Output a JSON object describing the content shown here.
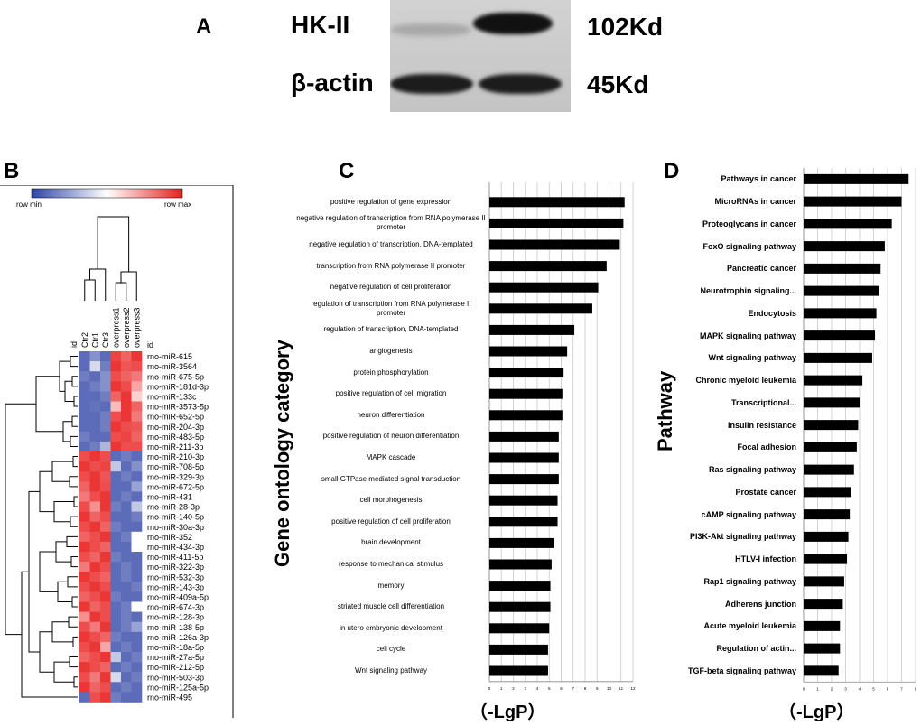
{
  "panel_a": {
    "letter": "A",
    "rows": [
      {
        "protein": "HK-II",
        "size": "102Kd"
      },
      {
        "protein": "β-actin",
        "size": "45Kd"
      }
    ]
  },
  "panel_b": {
    "letter": "B",
    "legend_min": "row min",
    "legend_max": "row max",
    "column_header": "id",
    "row_header": "id",
    "columns": [
      "Ctr2",
      "Ctr1",
      "Ctr3",
      "overpress1",
      "overpress2",
      "overpress3"
    ],
    "colors": {
      "low": "#3347a6",
      "high": "#e8201f",
      "mid": "#ffffff"
    },
    "rows": [
      {
        "id": "rno-miR-615",
        "values": [
          0.1,
          0.2,
          0.1,
          0.92,
          0.85,
          0.95
        ]
      },
      {
        "id": "rno-miR-3564",
        "values": [
          0.1,
          0.4,
          0.15,
          0.95,
          0.88,
          0.9
        ]
      },
      {
        "id": "rno-miR-675-5p",
        "values": [
          0.15,
          0.1,
          0.2,
          0.9,
          0.85,
          0.8
        ]
      },
      {
        "id": "rno-miR-181d-3p",
        "values": [
          0.1,
          0.15,
          0.2,
          0.95,
          0.9,
          0.7
        ]
      },
      {
        "id": "rno-miR-133c",
        "values": [
          0.1,
          0.1,
          0.15,
          0.85,
          0.95,
          0.6
        ]
      },
      {
        "id": "rno-miR-3573-5p",
        "values": [
          0.1,
          0.12,
          0.1,
          0.65,
          0.95,
          0.85
        ]
      },
      {
        "id": "rno-miR-652-5p",
        "values": [
          0.1,
          0.1,
          0.15,
          0.9,
          0.95,
          0.8
        ]
      },
      {
        "id": "rno-miR-204-3p",
        "values": [
          0.1,
          0.1,
          0.15,
          0.95,
          0.9,
          0.88
        ]
      },
      {
        "id": "rno-miR-483-5p",
        "values": [
          0.15,
          0.1,
          0.1,
          0.9,
          0.92,
          0.85
        ]
      },
      {
        "id": "rno-miR-211-3p",
        "values": [
          0.1,
          0.15,
          0.3,
          0.95,
          0.9,
          0.9
        ]
      },
      {
        "id": "rno-miR-210-3p",
        "values": [
          0.9,
          0.95,
          0.9,
          0.1,
          0.15,
          0.1
        ]
      },
      {
        "id": "rno-miR-708-5p",
        "values": [
          0.95,
          0.9,
          0.92,
          0.35,
          0.1,
          0.2
        ]
      },
      {
        "id": "rno-miR-329-3p",
        "values": [
          0.9,
          0.95,
          0.88,
          0.1,
          0.15,
          0.1
        ]
      },
      {
        "id": "rno-miR-672-5p",
        "values": [
          0.85,
          0.95,
          0.9,
          0.1,
          0.1,
          0.25
        ]
      },
      {
        "id": "rno-miR-431",
        "values": [
          0.8,
          0.9,
          0.95,
          0.1,
          0.15,
          0.1
        ]
      },
      {
        "id": "rno-miR-28-3p",
        "values": [
          0.9,
          0.75,
          0.95,
          0.15,
          0.1,
          0.35
        ]
      },
      {
        "id": "rno-miR-140-5p",
        "values": [
          0.95,
          0.85,
          0.9,
          0.1,
          0.1,
          0.15
        ]
      },
      {
        "id": "rno-miR-30a-3p",
        "values": [
          0.9,
          0.95,
          0.85,
          0.15,
          0.1,
          0.1
        ]
      },
      {
        "id": "rno-miR-352",
        "values": [
          0.85,
          0.9,
          0.95,
          0.1,
          0.15,
          0.5
        ]
      },
      {
        "id": "rno-miR-434-3p",
        "values": [
          0.95,
          0.9,
          0.85,
          0.1,
          0.1,
          0.5
        ]
      },
      {
        "id": "rno-miR-411-5p",
        "values": [
          0.9,
          0.85,
          0.95,
          0.15,
          0.1,
          0.1
        ]
      },
      {
        "id": "rno-miR-322-3p",
        "values": [
          0.8,
          0.95,
          0.9,
          0.1,
          0.15,
          0.1
        ]
      },
      {
        "id": "rno-miR-532-3p",
        "values": [
          0.95,
          0.9,
          0.85,
          0.1,
          0.15,
          0.1
        ]
      },
      {
        "id": "rno-miR-143-3p",
        "values": [
          0.9,
          0.95,
          0.9,
          0.1,
          0.1,
          0.15
        ]
      },
      {
        "id": "rno-miR-409a-5p",
        "values": [
          0.85,
          0.9,
          0.95,
          0.15,
          0.1,
          0.1
        ]
      },
      {
        "id": "rno-miR-674-3p",
        "values": [
          0.95,
          0.85,
          0.9,
          0.1,
          0.15,
          0.5
        ]
      },
      {
        "id": "rno-miR-128-3p",
        "values": [
          0.75,
          0.95,
          0.9,
          0.1,
          0.15,
          0.1
        ]
      },
      {
        "id": "rno-miR-138-5p",
        "values": [
          0.9,
          0.8,
          0.95,
          0.1,
          0.15,
          0.25
        ]
      },
      {
        "id": "rno-miR-126a-3p",
        "values": [
          0.95,
          0.9,
          0.85,
          0.15,
          0.1,
          0.1
        ]
      },
      {
        "id": "rno-miR-18a-5p",
        "values": [
          0.9,
          0.95,
          0.7,
          0.1,
          0.15,
          0.1
        ]
      },
      {
        "id": "rno-miR-27a-5p",
        "values": [
          0.85,
          0.9,
          0.95,
          0.35,
          0.1,
          0.15
        ]
      },
      {
        "id": "rno-miR-212-5p",
        "values": [
          0.95,
          0.9,
          0.85,
          0.1,
          0.15,
          0.1
        ]
      },
      {
        "id": "rno-miR-503-3p",
        "values": [
          0.9,
          0.8,
          0.95,
          0.4,
          0.1,
          0.15
        ]
      },
      {
        "id": "rno-miR-125a-5p",
        "values": [
          0.95,
          0.85,
          0.9,
          0.1,
          0.15,
          0.1
        ]
      },
      {
        "id": "rno-miR-495",
        "values": [
          0.1,
          0.9,
          0.95,
          0.15,
          0.1,
          0.1
        ]
      }
    ]
  },
  "chart_data": [
    {
      "panel": "C",
      "type": "bar",
      "orientation": "horizontal",
      "ylabel": "Gene ontology category",
      "xlabel": "（-LgP）",
      "xlim": [
        0,
        12
      ],
      "xticks": [
        "0",
        "1",
        "2",
        "3",
        "4",
        "5",
        "6",
        "7",
        "8",
        "9",
        "10",
        "11",
        "12"
      ],
      "grid": true,
      "categories": [
        "positive regulation of gene expression",
        "negative regulation of transcription from RNA polymerase II promoter",
        "negative regulation of transcription, DNA-templated",
        "transcription from RNA polymerase II promoter",
        "negative regulation of cell proliferation",
        "regulation of transcription from RNA polymerase II promoter",
        "regulation of transcription, DNA-templated",
        "angiogenesis",
        "protein phosphorylation",
        "positive regulation of cell migration",
        "neuron differentiation",
        "positive regulation of neuron differentiation",
        "MAPK cascade",
        "small GTPase mediated signal transduction",
        "cell morphogenesis",
        "positive regulation of cell proliferation",
        "brain development",
        "response to mechanical stimulus",
        "memory",
        "striated muscle cell differentiation",
        "in utero embryonic development",
        "cell cycle",
        "Wnt signaling pathway"
      ],
      "values": [
        11.3,
        11.2,
        10.9,
        9.8,
        9.1,
        8.6,
        7.1,
        6.5,
        6.2,
        6.1,
        6.1,
        5.8,
        5.8,
        5.8,
        5.7,
        5.7,
        5.4,
        5.2,
        5.1,
        5.1,
        5.0,
        4.9,
        4.9
      ]
    },
    {
      "panel": "D",
      "type": "bar",
      "orientation": "horizontal",
      "ylabel": "Pathway",
      "xlabel": "（-LgP）",
      "xlim": [
        0,
        8
      ],
      "xticks": [
        "0",
        "1",
        "2",
        "3",
        "4",
        "5",
        "6",
        "7",
        "8"
      ],
      "grid": true,
      "categories": [
        "Pathways in cancer",
        "MicroRNAs in cancer",
        "Proteoglycans in cancer",
        "FoxO signaling pathway",
        "Pancreatic cancer",
        "Neurotrophin signaling...",
        "Endocytosis",
        "MAPK signaling pathway",
        "Wnt signaling pathway",
        "Chronic myeloid leukemia",
        "Transcriptional...",
        "Insulin resistance",
        "Focal adhesion",
        "Ras signaling pathway",
        "Prostate cancer",
        "cAMP signaling pathway",
        "PI3K-Akt signaling pathway",
        "HTLV-I infection",
        "Rap1 signaling pathway",
        "Adherens junction",
        "Acute myeloid leukemia",
        "Regulation of actin...",
        "TGF-beta signaling pathway"
      ],
      "values": [
        7.5,
        7.0,
        6.3,
        5.8,
        5.5,
        5.4,
        5.2,
        5.1,
        4.9,
        4.2,
        4.0,
        3.9,
        3.8,
        3.6,
        3.4,
        3.3,
        3.2,
        3.1,
        2.9,
        2.8,
        2.6,
        2.6,
        2.5
      ]
    }
  ]
}
